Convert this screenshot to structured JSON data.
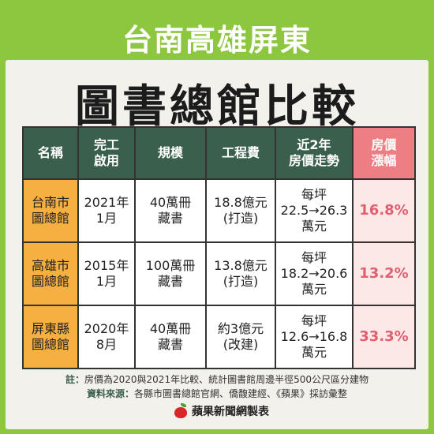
{
  "title_top": "台南高雄屏東",
  "title_main": "圖書總館比較",
  "table": {
    "headers": [
      [
        "名稱"
      ],
      [
        "完工",
        "啟用"
      ],
      [
        "規模"
      ],
      [
        "工程費"
      ],
      [
        "近2年",
        "房價走勢"
      ],
      [
        "房價",
        "漲幅"
      ]
    ],
    "rows": [
      {
        "name": [
          "台南市",
          "圖總館"
        ],
        "opened": [
          "2021年",
          "1月"
        ],
        "scale": [
          "40萬冊",
          "藏書"
        ],
        "cost": [
          "18.8億元",
          "(打造)"
        ],
        "trend": [
          "每坪",
          "22.5→26.3",
          "萬元"
        ],
        "rise": "16.8%"
      },
      {
        "name": [
          "高雄市",
          "圖總館"
        ],
        "opened": [
          "2015年",
          "1月"
        ],
        "scale": [
          "100萬冊",
          "藏書"
        ],
        "cost": [
          "13.8億元",
          "(打造)"
        ],
        "trend": [
          "每坪",
          "18.2→20.6",
          "萬元"
        ],
        "rise": "13.2%"
      },
      {
        "name": [
          "屏東縣",
          "圖總館"
        ],
        "opened": [
          "2020年",
          "8月"
        ],
        "scale": [
          "40萬冊",
          "藏書"
        ],
        "cost": [
          "約3億元",
          "(改建)"
        ],
        "trend": [
          "每坪",
          "12.6→16.8",
          "萬元"
        ],
        "rise": "33.3%"
      }
    ]
  },
  "note": {
    "label": "註：",
    "text": "房價為2020與2021年比較、統計圖書館周邊半徑500公尺區分建物"
  },
  "source": {
    "label": "資料來源：",
    "text": "各縣市圖書總館官網、僑馥建經、《蘋果》採訪彙整"
  },
  "brand": "蘋果新聞網製表",
  "colors": {
    "background": "#8dc63f",
    "header": "#3b5f4d",
    "header_highlight": "#ed7e84",
    "name_cell": "#f5b041",
    "rise_text": "#e06070"
  }
}
